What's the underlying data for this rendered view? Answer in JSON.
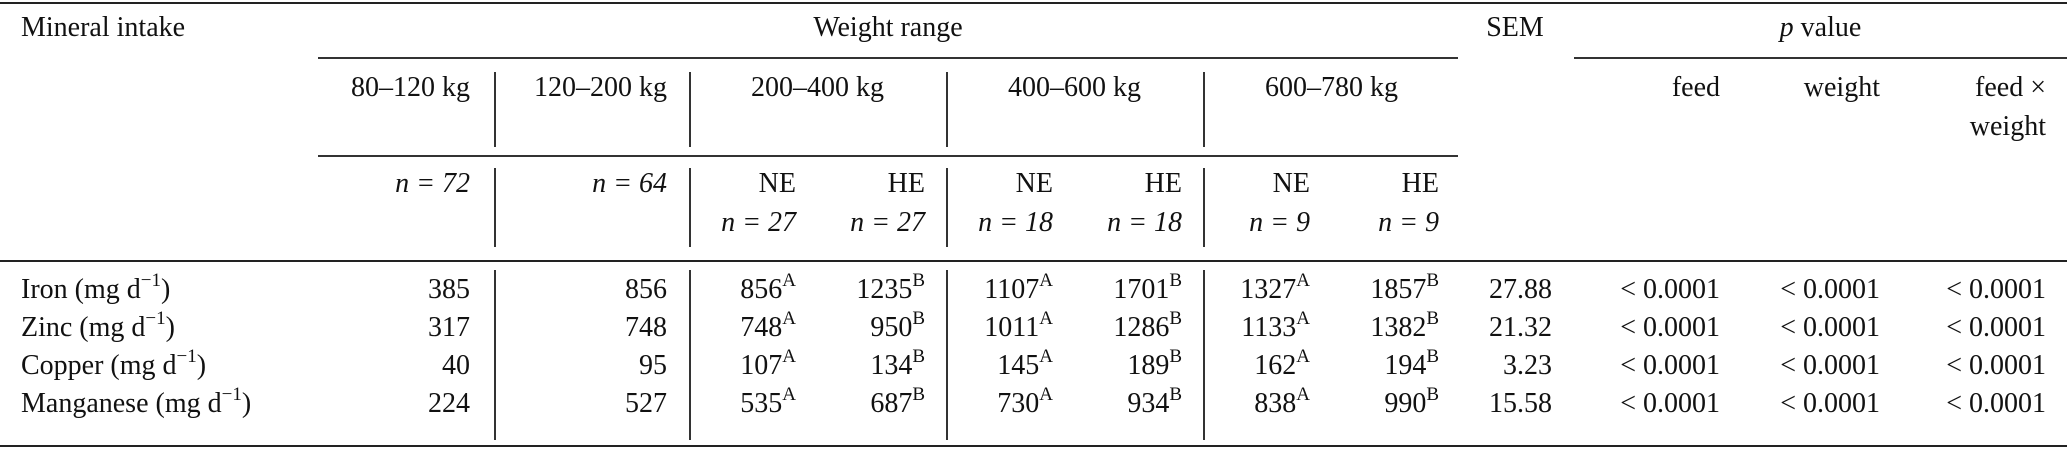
{
  "header": {
    "mineral_intake": "Mineral intake",
    "weight_range": "Weight range",
    "sem": "SEM",
    "p_value_italic": "p",
    "p_value_rest": " value",
    "weight_ranges": [
      "80–120 kg",
      "120–200 kg",
      "200–400 kg",
      "400–600 kg",
      "600–780 kg"
    ],
    "p_cols": {
      "feed": "feed",
      "weight": "weight",
      "feed_x_weight_1": "feed ×",
      "feed_x_weight_2": "weight"
    },
    "n_single": [
      "n = 72",
      "n = 64"
    ],
    "sub_groups": [
      {
        "label": "NE",
        "n": "n = 27"
      },
      {
        "label": "HE",
        "n": "n = 27"
      },
      {
        "label": "NE",
        "n": "n = 18"
      },
      {
        "label": "HE",
        "n": "n = 18"
      },
      {
        "label": "NE",
        "n": "n = 9"
      },
      {
        "label": "HE",
        "n": "n = 9"
      }
    ]
  },
  "rows": [
    {
      "label": "Iron (mg d",
      "exp": "−1",
      "close": ")",
      "c1": "385",
      "c2": "856",
      "v": [
        "856",
        "1235",
        "1107",
        "1701",
        "1327",
        "1857"
      ],
      "s": [
        "A",
        "B",
        "A",
        "B",
        "A",
        "B"
      ],
      "sem": "27.88",
      "p_feed": "< 0.0001",
      "p_weight": "< 0.0001",
      "p_fw": "< 0.0001"
    },
    {
      "label": "Zinc (mg d",
      "exp": "−1",
      "close": ")",
      "c1": "317",
      "c2": "748",
      "v": [
        "748",
        "950",
        "1011",
        "1286",
        "1133",
        "1382"
      ],
      "s": [
        "A",
        "B",
        "A",
        "B",
        "A",
        "B"
      ],
      "sem": "21.32",
      "p_feed": "< 0.0001",
      "p_weight": "< 0.0001",
      "p_fw": "< 0.0001"
    },
    {
      "label": "Copper (mg d",
      "exp": "−1",
      "close": ")",
      "c1": "40",
      "c2": "95",
      "v": [
        "107",
        "134",
        "145",
        "189",
        "162",
        "194"
      ],
      "s": [
        "A",
        "B",
        "A",
        "B",
        "A",
        "B"
      ],
      "sem": "3.23",
      "p_feed": "< 0.0001",
      "p_weight": "< 0.0001",
      "p_fw": "< 0.0001"
    },
    {
      "label": "Manganese (mg d",
      "exp": "−1",
      "close": ")",
      "c1": "224",
      "c2": "527",
      "v": [
        "535",
        "687",
        "730",
        "934",
        "838",
        "990"
      ],
      "s": [
        "A",
        "B",
        "A",
        "B",
        "A",
        "B"
      ],
      "sem": "15.58",
      "p_feed": "< 0.0001",
      "p_weight": "< 0.0001",
      "p_fw": "< 0.0001"
    }
  ]
}
